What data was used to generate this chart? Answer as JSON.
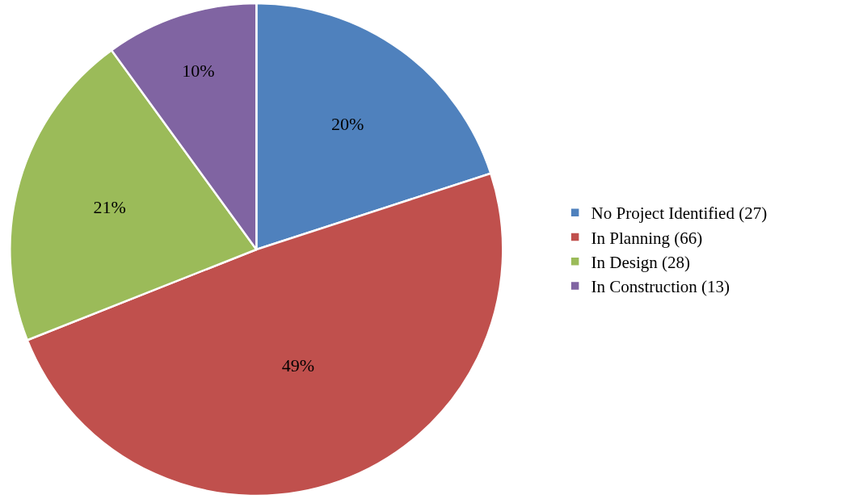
{
  "chart_data": {
    "type": "pie",
    "categories": [
      "No Project Identified (27)",
      "In Planning (66)",
      "In Design (28)",
      "In Construction (13)"
    ],
    "values": [
      20,
      49,
      21,
      10
    ],
    "colors": [
      "#4f81bd",
      "#c0504d",
      "#9bbb59",
      "#8064a2"
    ],
    "value_labels": [
      "20%",
      "49%",
      "21%",
      "10%"
    ],
    "legend": "right"
  }
}
